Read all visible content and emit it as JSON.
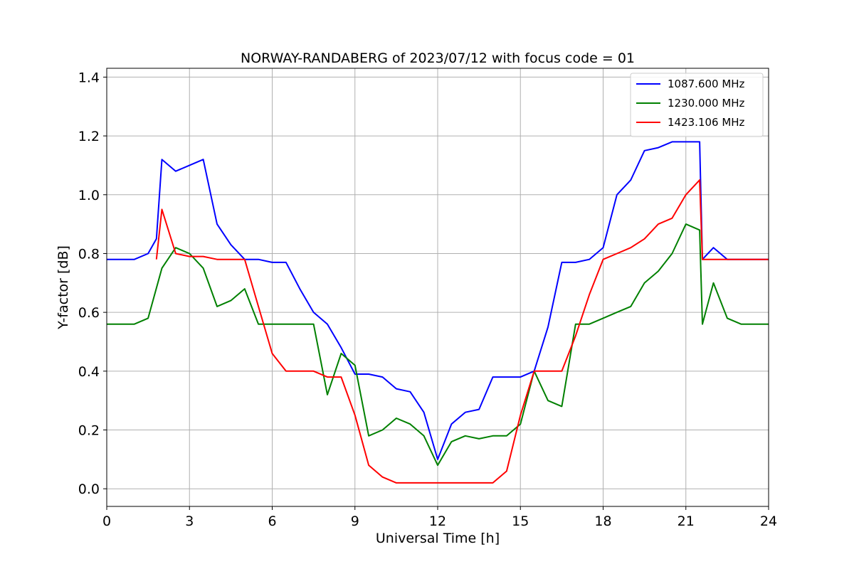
{
  "chart_data": {
    "type": "line",
    "title": "NORWAY-RANDABERG of 2023/07/12 with focus code = 01",
    "xlabel": "Universal Time [h]",
    "ylabel": "Y-factor [dB]",
    "xlim": [
      0,
      24
    ],
    "ylim": [
      -0.06,
      1.43
    ],
    "xticks": [
      0,
      3,
      6,
      9,
      12,
      15,
      18,
      21,
      24
    ],
    "xtick_labels": [
      "0",
      "3",
      "6",
      "9",
      "12",
      "15",
      "18",
      "21",
      "24"
    ],
    "yticks": [
      0.0,
      0.2,
      0.4,
      0.6,
      0.8,
      1.0,
      1.2,
      1.4
    ],
    "ytick_labels": [
      "0.0",
      "0.2",
      "0.4",
      "0.6",
      "0.8",
      "1.0",
      "1.2",
      "1.4"
    ],
    "grid": true,
    "legend_position": "top-right",
    "series": [
      {
        "name": "1087.600 MHz",
        "color": "#0000ff",
        "x": [
          0,
          0.5,
          1.0,
          1.5,
          1.8,
          2.0,
          2.5,
          3.0,
          3.5,
          4.0,
          4.5,
          5.0,
          5.5,
          6.0,
          6.5,
          7.0,
          7.5,
          8.0,
          8.5,
          9.0,
          9.5,
          10.0,
          10.5,
          11.0,
          11.5,
          12.0,
          12.5,
          13.0,
          13.5,
          14.0,
          14.5,
          15.0,
          15.5,
          16.0,
          16.5,
          17.0,
          17.5,
          18.0,
          18.5,
          19.0,
          19.5,
          20.0,
          20.5,
          21.0,
          21.5,
          21.6,
          22.0,
          22.5,
          23.0,
          23.5,
          24.0
        ],
        "y": [
          0.78,
          0.78,
          0.78,
          0.8,
          0.85,
          1.12,
          1.08,
          1.1,
          1.12,
          0.9,
          0.83,
          0.78,
          0.78,
          0.77,
          0.77,
          0.68,
          0.6,
          0.56,
          0.48,
          0.39,
          0.39,
          0.38,
          0.34,
          0.33,
          0.26,
          0.1,
          0.22,
          0.26,
          0.27,
          0.38,
          0.38,
          0.38,
          0.4,
          0.55,
          0.77,
          0.77,
          0.78,
          0.82,
          1.0,
          1.05,
          1.15,
          1.16,
          1.18,
          1.18,
          1.18,
          0.78,
          0.82,
          0.78,
          0.78,
          0.78,
          0.78
        ]
      },
      {
        "name": "1230.000 MHz",
        "color": "#008000",
        "x": [
          0,
          0.5,
          1.0,
          1.5,
          2.0,
          2.5,
          3.0,
          3.5,
          4.0,
          4.5,
          5.0,
          5.5,
          6.0,
          6.5,
          7.0,
          7.5,
          8.0,
          8.5,
          9.0,
          9.5,
          10.0,
          10.5,
          11.0,
          11.5,
          12.0,
          12.5,
          13.0,
          13.5,
          14.0,
          14.5,
          15.0,
          15.5,
          16.0,
          16.5,
          17.0,
          17.5,
          18.0,
          18.5,
          19.0,
          19.5,
          20.0,
          20.5,
          21.0,
          21.5,
          21.6,
          22.0,
          22.5,
          23.0,
          23.5,
          24.0
        ],
        "y": [
          0.56,
          0.56,
          0.56,
          0.58,
          0.75,
          0.82,
          0.8,
          0.75,
          0.62,
          0.64,
          0.68,
          0.56,
          0.56,
          0.56,
          0.56,
          0.56,
          0.32,
          0.46,
          0.42,
          0.18,
          0.2,
          0.24,
          0.22,
          0.18,
          0.08,
          0.16,
          0.18,
          0.17,
          0.18,
          0.18,
          0.22,
          0.4,
          0.3,
          0.28,
          0.56,
          0.56,
          0.58,
          0.6,
          0.62,
          0.7,
          0.74,
          0.8,
          0.9,
          0.88,
          0.56,
          0.7,
          0.58,
          0.56,
          0.56,
          0.56
        ]
      },
      {
        "name": "1423.106 MHz",
        "color": "#ff0000",
        "x": [
          1.8,
          2.0,
          2.5,
          3.0,
          3.5,
          4.0,
          4.5,
          5.0,
          5.5,
          6.0,
          6.5,
          7.0,
          7.5,
          8.0,
          8.5,
          9.0,
          9.5,
          10.0,
          10.5,
          11.0,
          11.5,
          12.0,
          12.5,
          13.0,
          13.5,
          14.0,
          14.5,
          15.0,
          15.5,
          16.0,
          16.5,
          17.0,
          17.5,
          18.0,
          18.5,
          19.0,
          19.5,
          20.0,
          20.5,
          21.0,
          21.5,
          21.6,
          22.0,
          22.5,
          23.0,
          23.5,
          24.0
        ],
        "y": [
          0.78,
          0.95,
          0.8,
          0.79,
          0.79,
          0.78,
          0.78,
          0.78,
          0.62,
          0.46,
          0.4,
          0.4,
          0.4,
          0.38,
          0.38,
          0.25,
          0.08,
          0.04,
          0.02,
          0.02,
          0.02,
          0.02,
          0.02,
          0.02,
          0.02,
          0.02,
          0.06,
          0.25,
          0.4,
          0.4,
          0.4,
          0.52,
          0.66,
          0.78,
          0.8,
          0.82,
          0.85,
          0.9,
          0.92,
          1.0,
          1.05,
          0.78,
          0.78,
          0.78,
          0.78,
          0.78,
          0.78
        ]
      }
    ]
  }
}
